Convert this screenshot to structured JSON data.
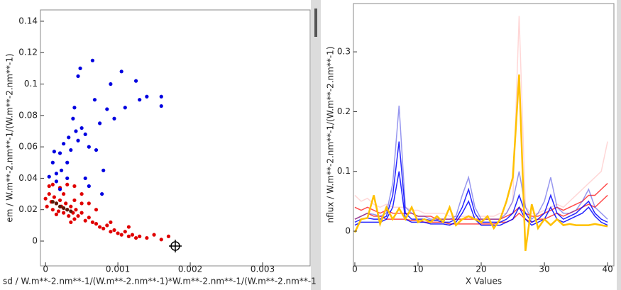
{
  "chart_data": [
    {
      "type": "scatter",
      "xlabel": "sd / W.m**-2.nm**-1/(W.m**-2.nm**-1)*W.m**-2.nm**-1/(W.m**-2.nm**-1",
      "ylabel": "em / W.m**-2.nm**-1/(W.m**-2.nm**-1)",
      "xlim": [
        -7e-05,
        0.003657
      ],
      "ylim": [
        -0.0158,
        0.1472
      ],
      "xticks": [
        0,
        0.001,
        0.002,
        0.003
      ],
      "yticks": [
        0,
        0.02,
        0.04,
        0.06,
        0.08,
        0.1,
        0.12,
        0.14
      ],
      "series": [
        {
          "color": "#e00000",
          "x": [
            0,
            2e-05,
            5e-05,
            8e-05,
            0.0001,
            0.00012,
            0.00015,
            0.00018,
            0.0002,
            0.00022,
            0.00025,
            0.00028,
            0.0003,
            0.00032,
            0.00035,
            0.00038,
            0.0004,
            0.00042,
            0.00045,
            0.0005,
            0.00055,
            0.0006,
            0.00065,
            0.0007,
            0.00075,
            0.0008,
            0.00085,
            0.0009,
            0.00095,
            0.001,
            0.00105,
            0.0011,
            0.00115,
            0.0012,
            0.00125,
            0.0013,
            0.0014,
            0.0015,
            0.0016,
            0.0017,
            5e-05,
            0.0001,
            0.0002,
            0.0003,
            0.0004,
            0.0005,
            0.0006,
            0.0004,
            0.00025,
            0.00015,
            0.0007,
            0.0005,
            0.00035,
            0.0009,
            0.00115
          ],
          "values": [
            0.027,
            0.022,
            0.03,
            0.025,
            0.02,
            0.028,
            0.024,
            0.019,
            0.026,
            0.022,
            0.018,
            0.024,
            0.02,
            0.016,
            0.022,
            0.018,
            0.014,
            0.02,
            0.016,
            0.018,
            0.013,
            0.015,
            0.012,
            0.011,
            0.009,
            0.008,
            0.01,
            0.006,
            0.007,
            0.005,
            0.004,
            0.006,
            0.003,
            0.004,
            0.002,
            0.003,
            0.002,
            0.004,
            0.001,
            0.003,
            0.035,
            0.036,
            0.034,
            0.036,
            0.035,
            0.03,
            0.024,
            0.026,
            0.03,
            0.017,
            0.02,
            0.024,
            0.012,
            0.012,
            0.009
          ]
        },
        {
          "color": "#5a1a0a",
          "x": [
            0.00015,
            0.0002,
            0.00025,
            0.0003,
            0.0001,
            0.00035
          ],
          "values": [
            0.024,
            0.022,
            0.021,
            0.02,
            0.025,
            0.019
          ]
        },
        {
          "color": "#0000e0",
          "x": [
            5e-05,
            0.0001,
            0.00012,
            0.00015,
            0.0002,
            0.00022,
            0.00025,
            0.0003,
            0.00032,
            0.00035,
            0.00038,
            0.0004,
            0.00042,
            0.00045,
            0.00048,
            0.00045,
            0.0005,
            0.00055,
            0.0006,
            0.00065,
            0.00068,
            0.00055,
            0.0006,
            0.0007,
            0.00075,
            0.0008,
            0.00085,
            0.0009,
            0.00095,
            0.00105,
            0.0011,
            0.00125,
            0.0013,
            0.0014,
            0.0016,
            0.0016,
            0.00078,
            0.0003,
            0.00015,
            0.0002
          ],
          "values": [
            0.041,
            0.05,
            0.057,
            0.043,
            0.056,
            0.045,
            0.062,
            0.05,
            0.066,
            0.058,
            0.078,
            0.085,
            0.07,
            0.064,
            0.11,
            0.105,
            0.072,
            0.068,
            0.06,
            0.115,
            0.09,
            0.04,
            0.035,
            0.058,
            0.075,
            0.045,
            0.084,
            0.1,
            0.078,
            0.108,
            0.085,
            0.102,
            0.09,
            0.092,
            0.092,
            0.086,
            0.03,
            0.04,
            0.038,
            0.033
          ]
        }
      ]
    },
    {
      "type": "line",
      "xlabel": "X Values",
      "ylabel": "nflux / W.m**-2.nm**-1/(W.m**-2.nm**-1)",
      "xlim": [
        -0.22,
        41.0
      ],
      "ylim": [
        -0.0581,
        0.3808
      ],
      "xticks": [
        0,
        10,
        20,
        30,
        40
      ],
      "yticks": [
        0,
        0.1,
        0.2,
        0.3
      ],
      "x": [
        0,
        1,
        2,
        3,
        4,
        5,
        6,
        7,
        8,
        9,
        10,
        11,
        12,
        13,
        14,
        15,
        16,
        17,
        18,
        19,
        20,
        21,
        22,
        23,
        24,
        25,
        26,
        27,
        28,
        29,
        30,
        31,
        32,
        33,
        34,
        35,
        36,
        37,
        38,
        39,
        40
      ],
      "series": [
        {
          "color": "#ff6060",
          "opacity": 0.25,
          "values": [
            0.06,
            0.05,
            0.055,
            0.045,
            0.04,
            0.045,
            0.04,
            0.04,
            0.04,
            0.035,
            0.035,
            0.03,
            0.03,
            0.03,
            0.03,
            0.025,
            0.025,
            0.025,
            0.025,
            0.025,
            0.025,
            0.025,
            0.025,
            0.03,
            0.03,
            0.05,
            0.36,
            0.04,
            0.03,
            0.03,
            0.035,
            0.04,
            0.045,
            0.04,
            0.05,
            0.06,
            0.07,
            0.08,
            0.09,
            0.1,
            0.15
          ]
        },
        {
          "color": "#ff0000",
          "opacity": 0.7,
          "values": [
            0.04,
            0.035,
            0.04,
            0.035,
            0.03,
            0.035,
            0.03,
            0.03,
            0.03,
            0.03,
            0.025,
            0.025,
            0.025,
            0.02,
            0.02,
            0.02,
            0.02,
            0.02,
            0.02,
            0.02,
            0.02,
            0.02,
            0.02,
            0.02,
            0.025,
            0.03,
            0.04,
            0.03,
            0.025,
            0.025,
            0.03,
            0.035,
            0.04,
            0.035,
            0.04,
            0.045,
            0.05,
            0.06,
            0.06,
            0.07,
            0.08
          ]
        },
        {
          "color": "#ff0000",
          "opacity": 0.7,
          "values": [
            0.02,
            0.025,
            0.03,
            0.025,
            0.025,
            0.02,
            0.02,
            0.02,
            0.02,
            0.018,
            0.018,
            0.015,
            0.015,
            0.015,
            0.015,
            0.012,
            0.012,
            0.012,
            0.012,
            0.012,
            0.012,
            0.012,
            0.012,
            0.015,
            0.015,
            0.02,
            0.03,
            0.02,
            0.015,
            0.02,
            0.02,
            0.025,
            0.03,
            0.025,
            0.03,
            0.035,
            0.04,
            0.045,
            0.04,
            0.05,
            0.06
          ]
        },
        {
          "color": "#3030e0",
          "opacity": 0.5,
          "values": [
            0.02,
            0.025,
            0.03,
            0.028,
            0.025,
            0.03,
            0.08,
            0.21,
            0.04,
            0.03,
            0.025,
            0.025,
            0.02,
            0.02,
            0.02,
            0.02,
            0.025,
            0.06,
            0.09,
            0.04,
            0.02,
            0.02,
            0.02,
            0.02,
            0.03,
            0.05,
            0.1,
            0.04,
            0.02,
            0.03,
            0.05,
            0.09,
            0.04,
            0.03,
            0.03,
            0.035,
            0.05,
            0.07,
            0.04,
            0.03,
            0.02
          ]
        },
        {
          "color": "#0000ff",
          "opacity": 0.85,
          "values": [
            0.015,
            0.02,
            0.022,
            0.02,
            0.02,
            0.025,
            0.06,
            0.15,
            0.03,
            0.02,
            0.02,
            0.02,
            0.018,
            0.018,
            0.015,
            0.015,
            0.02,
            0.04,
            0.07,
            0.03,
            0.015,
            0.015,
            0.015,
            0.015,
            0.02,
            0.03,
            0.06,
            0.03,
            0.015,
            0.02,
            0.03,
            0.06,
            0.03,
            0.02,
            0.025,
            0.03,
            0.04,
            0.05,
            0.03,
            0.02,
            0.015
          ]
        },
        {
          "color": "#0000ff",
          "opacity": 0.85,
          "values": [
            0.01,
            0.015,
            0.015,
            0.015,
            0.015,
            0.02,
            0.04,
            0.1,
            0.02,
            0.015,
            0.015,
            0.015,
            0.012,
            0.012,
            0.012,
            0.01,
            0.015,
            0.03,
            0.05,
            0.02,
            0.01,
            0.01,
            0.01,
            0.01,
            0.015,
            0.02,
            0.04,
            0.02,
            0.01,
            0.015,
            0.02,
            0.04,
            0.02,
            0.015,
            0.02,
            0.025,
            0.03,
            0.04,
            0.025,
            0.015,
            0.01
          ]
        },
        {
          "color": "#ffc000",
          "opacity": 1,
          "values": [
            -0.002,
            0.02,
            0.022,
            0.06,
            0.012,
            0.04,
            0.02,
            0.038,
            0.02,
            0.04,
            0.015,
            0.02,
            0.015,
            0.025,
            0.015,
            0.04,
            0.01,
            0.02,
            0.025,
            0.02,
            0.015,
            0.025,
            0.005,
            0.02,
            0.05,
            0.09,
            0.262,
            -0.033,
            0.045,
            0.005,
            0.02,
            0.01,
            0.02,
            0.01,
            0.012,
            0.01,
            0.01,
            0.01,
            0.012,
            0.01,
            0.008
          ]
        }
      ]
    }
  ]
}
